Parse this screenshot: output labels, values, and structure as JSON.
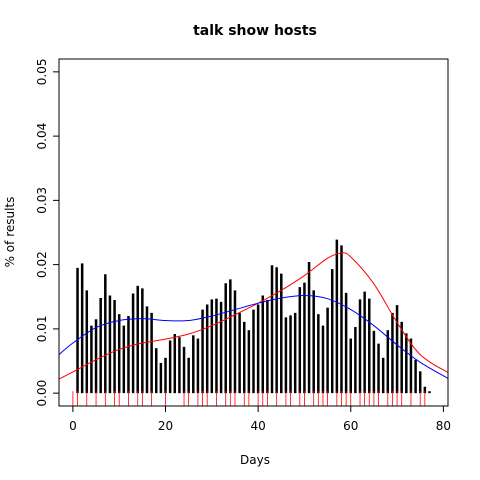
{
  "chart_data": {
    "type": "bar",
    "title": "talk show hosts",
    "xlabel": "Days",
    "ylabel": "% of results",
    "xlim": [
      -3,
      81
    ],
    "ylim": [
      -0.002,
      0.052
    ],
    "xticks": [
      0,
      20,
      40,
      60,
      80
    ],
    "yticks": [
      0.0,
      0.01,
      0.02,
      0.03,
      0.04,
      0.05
    ],
    "ytick_labels": [
      "0.00",
      "0.01",
      "0.02",
      "0.03",
      "0.04",
      "0.05"
    ],
    "grid": false,
    "legend": "none",
    "bars": {
      "x": [
        1,
        2,
        3,
        4,
        5,
        6,
        7,
        8,
        9,
        10,
        11,
        12,
        13,
        14,
        15,
        16,
        17,
        18,
        19,
        20,
        21,
        22,
        23,
        24,
        25,
        26,
        27,
        28,
        29,
        30,
        31,
        32,
        33,
        34,
        35,
        36,
        37,
        38,
        39,
        40,
        41,
        42,
        43,
        44,
        45,
        46,
        47,
        48,
        49,
        50,
        51,
        52,
        53,
        54,
        55,
        56,
        57,
        58,
        59,
        60,
        61,
        62,
        63,
        64,
        65,
        66,
        67,
        68,
        69,
        70,
        71,
        72,
        73,
        74,
        75,
        76,
        77
      ],
      "values": [
        0.0195,
        0.0202,
        0.016,
        0.0105,
        0.0115,
        0.0148,
        0.0185,
        0.0152,
        0.0145,
        0.0123,
        0.0105,
        0.012,
        0.0155,
        0.0167,
        0.0163,
        0.0135,
        0.0125,
        0.007,
        0.0047,
        0.0055,
        0.0082,
        0.0092,
        0.0087,
        0.0072,
        0.0055,
        0.009,
        0.0085,
        0.013,
        0.0138,
        0.0146,
        0.0147,
        0.0142,
        0.0171,
        0.0177,
        0.016,
        0.0125,
        0.0111,
        0.0098,
        0.013,
        0.0138,
        0.0152,
        0.0145,
        0.0199,
        0.0196,
        0.0186,
        0.0118,
        0.0121,
        0.0125,
        0.0165,
        0.0172,
        0.0204,
        0.016,
        0.0123,
        0.0105,
        0.0133,
        0.0193,
        0.0239,
        0.023,
        0.0156,
        0.0085,
        0.0103,
        0.0146,
        0.0158,
        0.0147,
        0.0097,
        0.0077,
        0.0055,
        0.0098,
        0.0125,
        0.0137,
        0.0111,
        0.0093,
        0.0085,
        0.0052,
        0.0034,
        0.001,
        0.0003
      ],
      "color": "#000000"
    },
    "series": [
      {
        "color": "#ff0000",
        "x": [
          -3,
          0,
          5,
          10,
          15,
          20,
          25,
          30,
          35,
          40,
          45,
          50,
          55,
          58,
          60,
          65,
          70,
          75,
          81
        ],
        "y": [
          0.0022,
          0.0033,
          0.0052,
          0.0068,
          0.0078,
          0.0084,
          0.0092,
          0.0105,
          0.0122,
          0.014,
          0.016,
          0.0183,
          0.021,
          0.0218,
          0.0212,
          0.017,
          0.011,
          0.006,
          0.0032
        ]
      },
      {
        "color": "#0000ff",
        "x": [
          -3,
          0,
          5,
          10,
          15,
          20,
          25,
          30,
          35,
          40,
          45,
          50,
          55,
          60,
          65,
          70,
          75,
          81
        ],
        "y": [
          0.006,
          0.0078,
          0.0102,
          0.0113,
          0.0116,
          0.0113,
          0.0113,
          0.012,
          0.013,
          0.014,
          0.0148,
          0.0152,
          0.0147,
          0.013,
          0.0105,
          0.0075,
          0.0048,
          0.0023
        ]
      }
    ],
    "rug": {
      "color": "#ff0000",
      "x": [
        0,
        1,
        3,
        5,
        7,
        9,
        10,
        12,
        14,
        15,
        17,
        20,
        24,
        25,
        27,
        28,
        29,
        31,
        33,
        34,
        35,
        37,
        38,
        40,
        41,
        42,
        44,
        46,
        47,
        49,
        50,
        52,
        53,
        54,
        55,
        57,
        58,
        59,
        60,
        62,
        63,
        64,
        65,
        66,
        68,
        69,
        70,
        71,
        73,
        75,
        76
      ]
    }
  }
}
